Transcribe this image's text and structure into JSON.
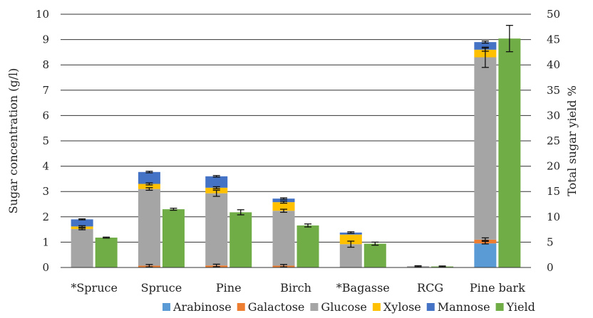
{
  "chart_data": {
    "type": "bar",
    "categories": [
      "*Spruce",
      "Spruce",
      "Pine",
      "Birch",
      "*Bagasse",
      "RCG",
      "Pine bark"
    ],
    "ylabel": "Sugar concentration (g/l)",
    "y2label": "Total sugar yield %",
    "ylim": [
      0,
      10
    ],
    "y2lim": [
      0,
      50
    ],
    "yticks": [
      "0",
      "1",
      "2",
      "3",
      "4",
      "5",
      "6",
      "7",
      "8",
      "9",
      "10"
    ],
    "y2ticks": [
      "0",
      "5",
      "10",
      "15",
      "20",
      "25",
      "30",
      "35",
      "40",
      "45",
      "50"
    ],
    "grid": true,
    "legend_position": "bottom",
    "stacked_series": [
      {
        "name": "Arabinose",
        "color": "#5B9BD5",
        "values": [
          0,
          0,
          0,
          0,
          0,
          0,
          0.95
        ]
      },
      {
        "name": "Galactose",
        "color": "#ED7D31",
        "values": [
          0,
          0.07,
          0.08,
          0.07,
          0,
          0,
          0.15
        ]
      },
      {
        "name": "Glucose",
        "color": "#A5A5A5",
        "values": [
          1.52,
          3.03,
          2.85,
          2.17,
          0.92,
          0.05,
          7.2
        ]
      },
      {
        "name": "Xylose",
        "color": "#FFC000",
        "values": [
          0.1,
          0.2,
          0.22,
          0.34,
          0.38,
          0,
          0.3
        ]
      },
      {
        "name": "Mannose",
        "color": "#4472C4",
        "values": [
          0.28,
          0.47,
          0.45,
          0.14,
          0.08,
          0,
          0.3
        ]
      }
    ],
    "stack_errors": [
      {
        "series": "Galactose",
        "index": 1,
        "value": 0.07,
        "err": 0.05
      },
      {
        "series": "Galactose",
        "index": 2,
        "value": 0.08,
        "err": 0.05
      },
      {
        "series": "Galactose",
        "index": 3,
        "value": 0.07,
        "err": 0.05
      },
      {
        "series": "Glucose",
        "index": 0,
        "value": 1.52,
        "err": 0.03
      },
      {
        "series": "Glucose",
        "index": 1,
        "value": 3.1,
        "err": 0.05
      },
      {
        "series": "Glucose",
        "index": 2,
        "value": 2.93,
        "err": 0.12
      },
      {
        "series": "Glucose",
        "index": 3,
        "value": 2.24,
        "err": 0.06
      },
      {
        "series": "Glucose",
        "index": 4,
        "value": 0.92,
        "err": 0.12
      },
      {
        "series": "Glucose",
        "index": 5,
        "value": 0.05,
        "err": 0.02
      },
      {
        "series": "Arabinose",
        "index": 6,
        "value": 0.98,
        "err": 0.05
      },
      {
        "series": "Galactose",
        "index": 6,
        "value": 1.12,
        "err": 0.05
      },
      {
        "series": "Glucose",
        "index": 6,
        "value": 8.3,
        "err": 0.4
      },
      {
        "series": "Xylose",
        "index": 0,
        "value": 1.62,
        "err": 0.03
      },
      {
        "series": "Xylose",
        "index": 1,
        "value": 3.3,
        "err": 0.04
      },
      {
        "series": "Xylose",
        "index": 2,
        "value": 3.15,
        "err": 0.04
      },
      {
        "series": "Xylose",
        "index": 3,
        "value": 2.58,
        "err": 0.04
      },
      {
        "series": "Xylose",
        "index": 6,
        "value": 8.6,
        "err": 0.06
      },
      {
        "series": "Mannose",
        "index": 0,
        "value": 1.9,
        "err": 0.02
      },
      {
        "series": "Mannose",
        "index": 1,
        "value": 3.77,
        "err": 0.03
      },
      {
        "series": "Mannose",
        "index": 2,
        "value": 3.6,
        "err": 0.03
      },
      {
        "series": "Mannose",
        "index": 3,
        "value": 2.72,
        "err": 0.03
      },
      {
        "series": "Mannose",
        "index": 4,
        "value": 1.38,
        "err": 0.03
      },
      {
        "series": "Mannose",
        "index": 6,
        "value": 8.9,
        "err": 0.04
      }
    ],
    "yield_series": {
      "name": "Yield",
      "color": "#70AD47",
      "axis": "right",
      "values": [
        5.9,
        11.5,
        10.9,
        8.3,
        4.7,
        0.2,
        45.2
      ],
      "errors": [
        0.1,
        0.2,
        0.5,
        0.3,
        0.3,
        0.1,
        2.6
      ]
    }
  }
}
